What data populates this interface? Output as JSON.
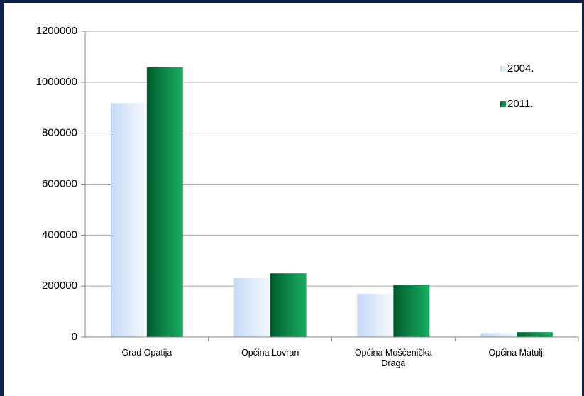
{
  "chart_data": {
    "type": "bar",
    "categories": [
      "Grad Opatija",
      "Općina Lovran",
      "Općina Mošćenička Draga",
      "Općina Matulji"
    ],
    "series": [
      {
        "name": "2004.",
        "color": "#c5daf6",
        "values": [
          918000,
          231000,
          170000,
          16000
        ]
      },
      {
        "name": "2011.",
        "color": "#00a651",
        "values": [
          1058000,
          250000,
          206000,
          19000
        ]
      }
    ],
    "ylim": [
      0,
      1200000
    ],
    "yticks": [
      0,
      200000,
      400000,
      600000,
      800000,
      1000000,
      1200000
    ],
    "grid": true,
    "legend": "upper right"
  }
}
